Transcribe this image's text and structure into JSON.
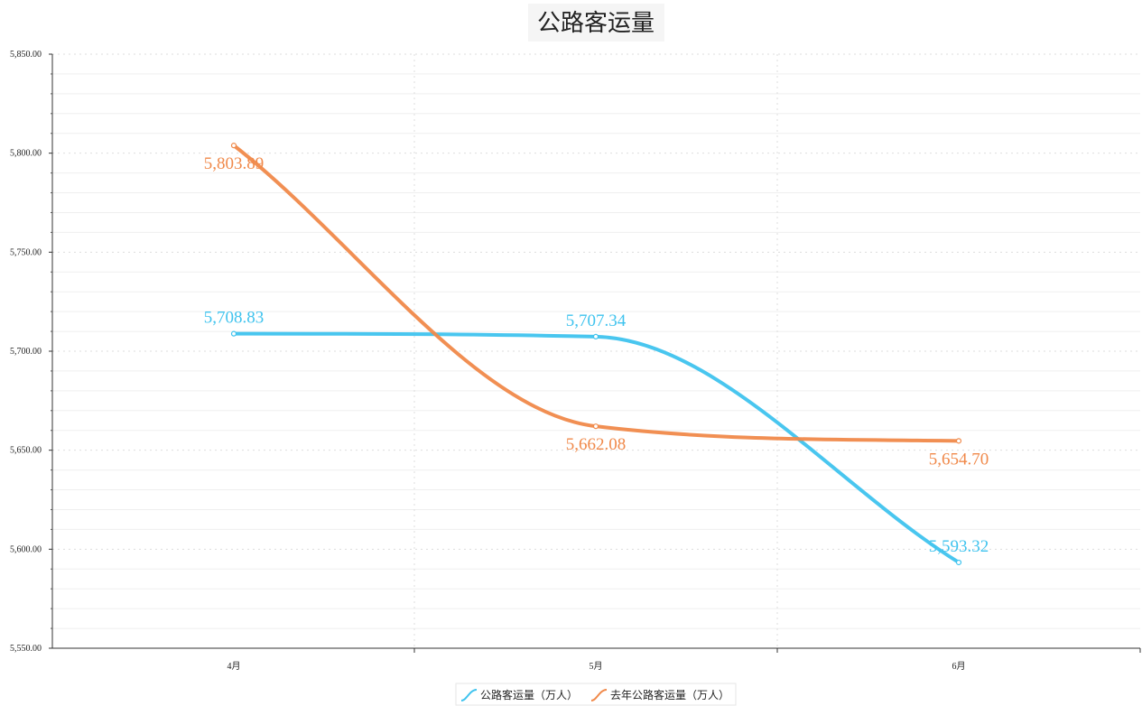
{
  "chart_data": {
    "type": "line",
    "title": "公路客运量",
    "categories": [
      "4月",
      "5月",
      "6月"
    ],
    "series": [
      {
        "name": "公路客运量（万人）",
        "values": [
          5708.83,
          5707.34,
          5593.32
        ],
        "labels": [
          "5,708.83",
          "5,707.34",
          "5,593.32"
        ],
        "color": "#3fc3ee"
      },
      {
        "name": "去年公路客运量（万人）",
        "values": [
          5803.89,
          5662.08,
          5654.7
        ],
        "labels": [
          "5,803.89",
          "5,662.08",
          "5,654.70"
        ],
        "color": "#f0894a"
      }
    ],
    "ylim": [
      5550,
      5850
    ],
    "yticks": [
      5550,
      5600,
      5650,
      5700,
      5750,
      5800,
      5850
    ],
    "ytick_labels": [
      "5,550.00",
      "5,600.00",
      "5,650.00",
      "5,700.00",
      "5,750.00",
      "5,800.00",
      "5,850.00"
    ],
    "xlabel": "",
    "ylabel": "",
    "grid": true,
    "smooth": true,
    "legend_position": "bottom-center"
  }
}
